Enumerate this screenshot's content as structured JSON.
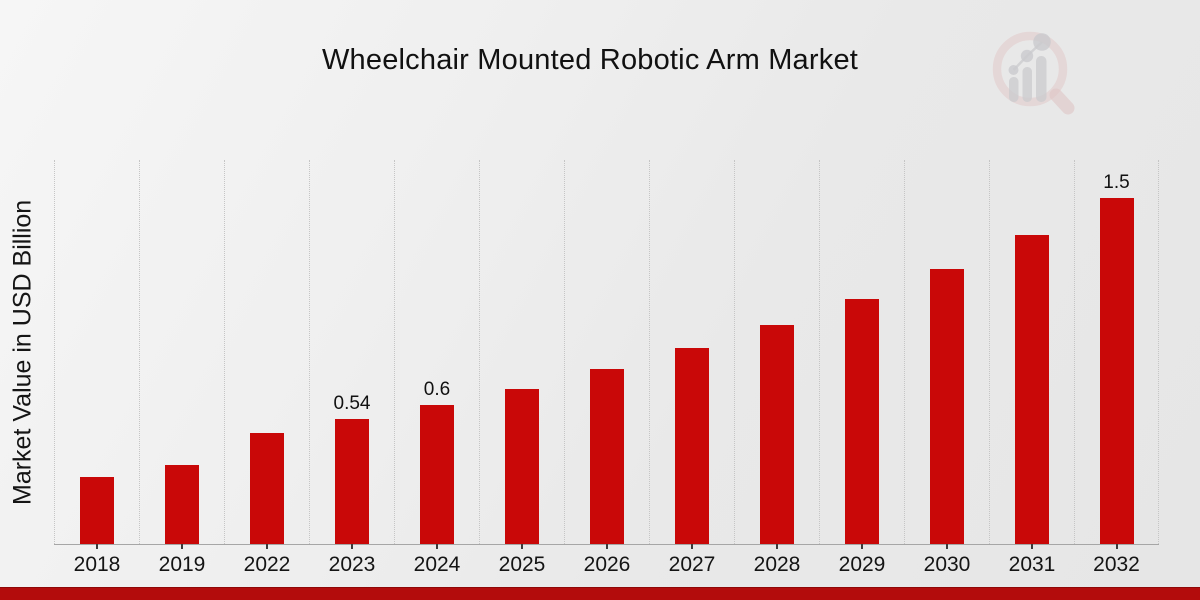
{
  "title": "Wheelchair Mounted Robotic Arm Market",
  "watermark_logo": "magnifier-bar-chart-logo",
  "colors": {
    "bar": "#c90808",
    "bottom_band": "#b30c0c",
    "background": "#ececec",
    "gridline": "#c5c5c5",
    "logo_ring_pink": "#dcaeae",
    "logo_bars_gray": "#b2b2b8"
  },
  "chart_data": {
    "type": "bar",
    "title": "Wheelchair Mounted Robotic Arm Market",
    "xlabel": "",
    "ylabel": "Market Value in USD Billion",
    "categories": [
      "2018",
      "2019",
      "2022",
      "2023",
      "2024",
      "2025",
      "2026",
      "2027",
      "2028",
      "2029",
      "2030",
      "2031",
      "2032"
    ],
    "values": [
      0.29,
      0.34,
      0.48,
      0.54,
      0.6,
      0.67,
      0.76,
      0.85,
      0.95,
      1.06,
      1.19,
      1.34,
      1.5
    ],
    "bar_labels": [
      "",
      "",
      "",
      "0.54",
      "0.6",
      "",
      "",
      "",
      "",
      "",
      "",
      "",
      "1.5"
    ],
    "ylim": [
      0,
      1.663
    ],
    "grid": "vertical-dotted",
    "legend": "none",
    "units": "USD Billion"
  }
}
